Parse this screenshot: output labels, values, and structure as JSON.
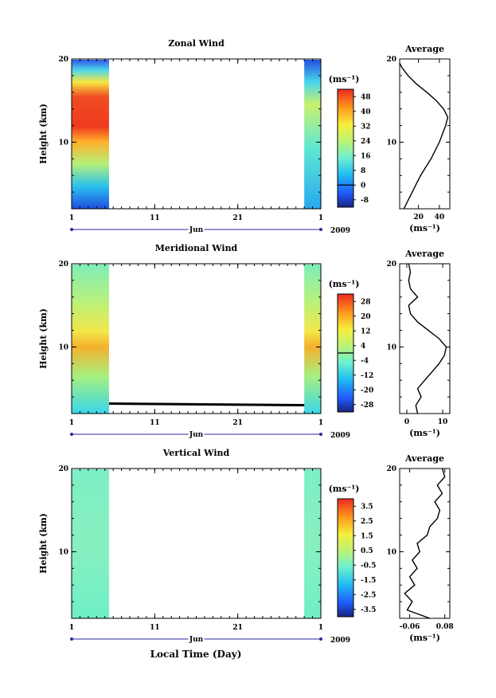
{
  "figure": {
    "xlabel": "Local Time (Day)"
  },
  "chart_data": [
    {
      "type": "heatmap",
      "title": "Zonal Wind",
      "ylabel": "Height (km)",
      "month_label": "Jun",
      "year_label": "2009",
      "x_ticks": [
        "1",
        "11",
        "21",
        "1"
      ],
      "y_ticks": [
        "10",
        "20"
      ],
      "ylim": [
        2,
        20
      ],
      "xlim": [
        1,
        31
      ],
      "data_spans_days": [
        [
          1,
          5.5
        ],
        [
          29,
          31
        ]
      ],
      "colorbar": {
        "unit_label": "(ms⁻¹)",
        "ticks": [
          "48",
          "40",
          "32",
          "24",
          "16",
          "8",
          "0",
          "-8"
        ],
        "range": [
          -12,
          52
        ]
      },
      "profile": {
        "title": "Average",
        "xlabel": "(ms⁻¹)",
        "x_ticks": [
          "20",
          "40"
        ],
        "y_ticks": [
          "10",
          "20"
        ],
        "xlim": [
          2,
          50
        ],
        "height_km": [
          2,
          3,
          4,
          5,
          6,
          7,
          8,
          9,
          10,
          11,
          12,
          13,
          14,
          15,
          16,
          17,
          18,
          19,
          19.5
        ],
        "values": [
          6,
          10,
          14,
          18,
          22,
          27,
          32,
          36,
          40,
          43,
          46,
          48,
          44,
          37,
          28,
          18,
          10,
          4,
          2
        ]
      }
    },
    {
      "type": "heatmap",
      "title": "Meridional Wind",
      "ylabel": "Height (km)",
      "month_label": "Jun",
      "year_label": "2009",
      "x_ticks": [
        "1",
        "11",
        "21",
        "1"
      ],
      "y_ticks": [
        "10",
        "20"
      ],
      "ylim": [
        2,
        20
      ],
      "xlim": [
        1,
        31
      ],
      "data_spans_days": [
        [
          1,
          5.5
        ],
        [
          29,
          31
        ]
      ],
      "colorbar": {
        "unit_label": "(ms⁻¹)",
        "ticks": [
          "28",
          "20",
          "12",
          "4",
          "-4",
          "-12",
          "-20",
          "-28"
        ],
        "range": [
          -32,
          32
        ]
      },
      "profile": {
        "title": "Average",
        "xlabel": "(ms⁻¹)",
        "x_ticks": [
          "0",
          "10"
        ],
        "y_ticks": [
          "10",
          "20"
        ],
        "xlim": [
          -2,
          12
        ],
        "height_km": [
          2,
          3,
          4,
          5,
          6,
          7,
          8,
          9,
          10,
          11,
          12,
          13,
          14,
          15,
          16,
          17,
          18,
          19,
          20
        ],
        "values": [
          3,
          2.5,
          4,
          3,
          5,
          7,
          9,
          10.5,
          11,
          9,
          6,
          3,
          1,
          0.5,
          3,
          1,
          0.5,
          1,
          0.5
        ]
      }
    },
    {
      "type": "heatmap",
      "title": "Vertical Wind",
      "ylabel": "Height (km)",
      "month_label": "Jun",
      "year_label": "2009",
      "x_ticks": [
        "1",
        "11",
        "21",
        "1"
      ],
      "y_ticks": [
        "10",
        "20"
      ],
      "ylim": [
        2,
        20
      ],
      "xlim": [
        1,
        31
      ],
      "data_spans_days": [
        [
          1,
          5.5
        ],
        [
          29,
          31
        ]
      ],
      "colorbar": {
        "unit_label": "(ms⁻¹)",
        "ticks": [
          "3.5",
          "2.5",
          "1.5",
          "0.5",
          "-0.5",
          "-1.5",
          "-2.5",
          "-3.5"
        ],
        "range": [
          -4,
          4
        ]
      },
      "profile": {
        "title": "Average",
        "xlabel": "(ms⁻¹)",
        "x_ticks": [
          "-0.06",
          "0.08"
        ],
        "y_ticks": [
          "10",
          "20"
        ],
        "xlim": [
          -0.1,
          0.1
        ],
        "height_km": [
          2,
          3,
          4,
          5,
          6,
          7,
          8,
          9,
          10,
          11,
          12,
          13,
          14,
          15,
          16,
          17,
          18,
          19,
          20
        ],
        "values": [
          0.02,
          -0.07,
          -0.05,
          -0.08,
          -0.04,
          -0.06,
          -0.03,
          -0.05,
          -0.02,
          -0.03,
          0.01,
          0.02,
          0.05,
          0.06,
          0.04,
          0.07,
          0.05,
          0.08,
          0.07
        ]
      }
    }
  ]
}
